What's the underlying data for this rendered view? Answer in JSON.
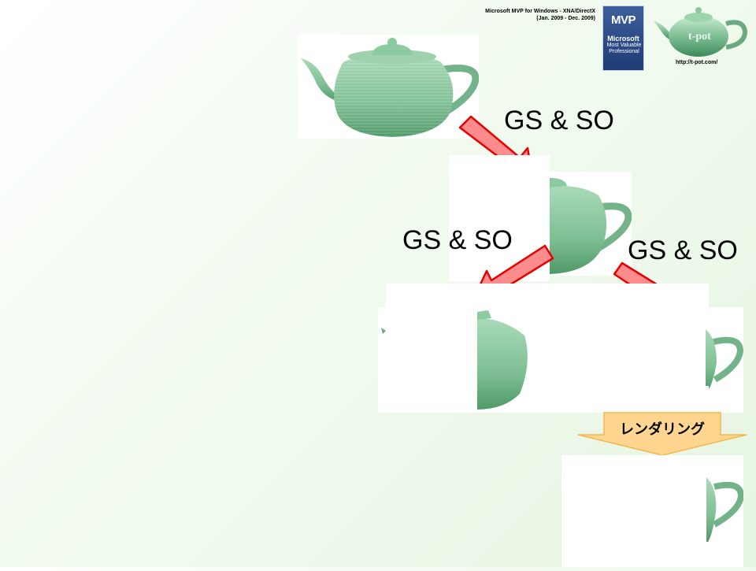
{
  "header": {
    "mvp_line1": "Microsoft MVP for Windows - XNA/DirectX",
    "mvp_line2": "(Jan. 2009 - Dec. 2009)",
    "badge_word": "MVP",
    "badge_ms": "Microsoft",
    "badge_sub": "Most Valuable Professional",
    "url": "http://t-pot.com/",
    "logo_text": "t-pot"
  },
  "labels": {
    "gs_so_top": "GS & SO",
    "gs_so_left": "GS & SO",
    "gs_so_right": "GS & SO",
    "render": "レンダリング"
  },
  "colors": {
    "arrow_fill": "#ff8c8c",
    "arrow_stroke": "#e60000",
    "render_fill": "#ffd590",
    "teapot": "#7fbf94"
  },
  "icons": {
    "teapot": "teapot-icon",
    "arrow": "arrow-icon"
  }
}
